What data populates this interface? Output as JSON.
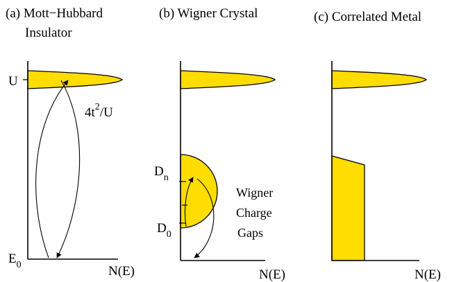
{
  "colors": {
    "fill": "#ffdd00",
    "line": "#000000"
  },
  "panels": [
    {
      "title_line1": "(a) Mott−Hubbard",
      "title_line2": "Insulator",
      "xaxis": "N(E)"
    },
    {
      "title_line1": "(b) Wigner Crystal",
      "xaxis": "N(E)"
    },
    {
      "title_line1": "(c) Correlated Metal",
      "xaxis": "N(E)"
    }
  ],
  "labels": {
    "U": "U",
    "E": "E",
    "E_sub": "0",
    "hop_base": "4t",
    "hop_sup": "2",
    "hop_tail": "/U",
    "D": "D",
    "Dn_sub": "n",
    "D0_sub": "0",
    "gap_line1": "Wigner",
    "gap_line2": "Charge",
    "gap_line3": "Gaps"
  }
}
